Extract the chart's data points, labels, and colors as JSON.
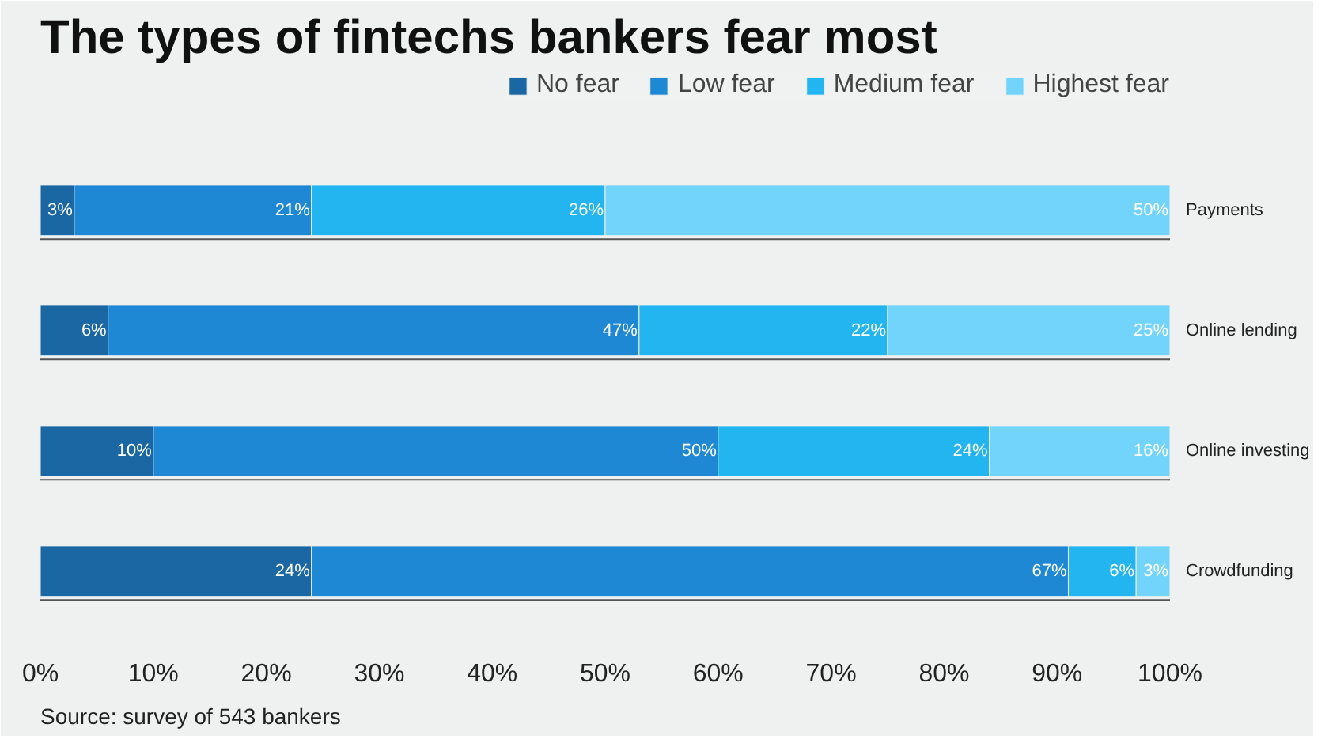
{
  "chart_data": {
    "type": "bar",
    "orientation": "horizontal",
    "stacked": true,
    "title": "The types of fintechs bankers fear most",
    "categories": [
      "Payments",
      "Online lending",
      "Online investing",
      "Crowdfunding"
    ],
    "series": [
      {
        "name": "No fear",
        "color": "#1b67a3",
        "values": [
          3,
          6,
          10,
          24
        ],
        "value_labels": [
          "3%",
          "6%",
          "10%",
          "24%"
        ]
      },
      {
        "name": "Low fear",
        "color": "#1f88d4",
        "values": [
          21,
          47,
          50,
          67
        ],
        "value_labels": [
          "21%",
          "47%",
          "50%",
          "67%"
        ]
      },
      {
        "name": "Medium fear",
        "color": "#22b5f0",
        "values": [
          26,
          22,
          24,
          6
        ],
        "value_labels": [
          "26%",
          "22%",
          "24%",
          "6%"
        ]
      },
      {
        "name": "Highest fear",
        "color": "#72d4fb",
        "values": [
          50,
          25,
          16,
          3
        ],
        "value_labels": [
          "50%",
          "25%",
          "16%",
          "3%"
        ]
      }
    ],
    "xlim": [
      0,
      100
    ],
    "xticks": [
      {
        "value": 0,
        "label": "0%"
      },
      {
        "value": 10,
        "label": "10%"
      },
      {
        "value": 20,
        "label": "20%"
      },
      {
        "value": 30,
        "label": "30%"
      },
      {
        "value": 40,
        "label": "40%"
      },
      {
        "value": 50,
        "label": "50%"
      },
      {
        "value": 60,
        "label": "60%"
      },
      {
        "value": 70,
        "label": "70%"
      },
      {
        "value": 80,
        "label": "80%"
      },
      {
        "value": 90,
        "label": "90%"
      },
      {
        "value": 100,
        "label": "100%"
      }
    ],
    "legend": "top right",
    "grid": false,
    "annotations": [
      "Source: survey of 543 bankers"
    ]
  }
}
